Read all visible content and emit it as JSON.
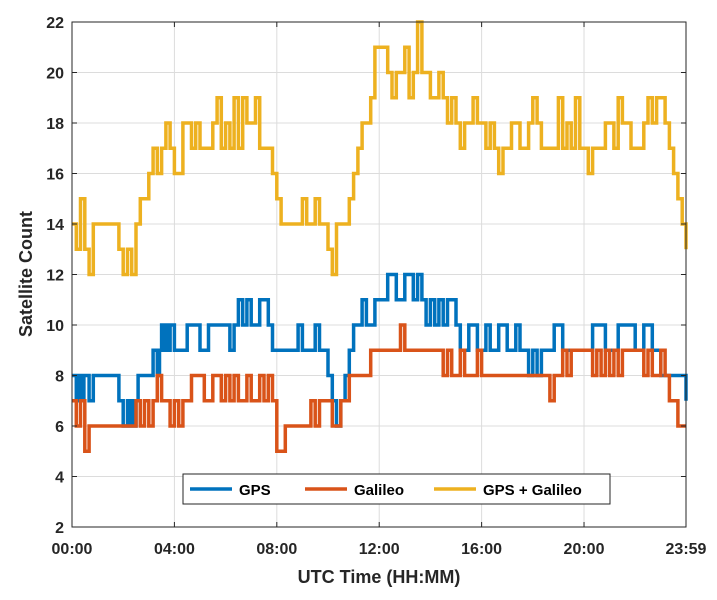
{
  "chart_data": {
    "type": "line",
    "title": "",
    "xlabel": "UTC Time (HH:MM)",
    "ylabel": "Satellite Count",
    "xlim": [
      0,
      1439
    ],
    "ylim": [
      2,
      22
    ],
    "xtick_values": [
      0,
      240,
      480,
      720,
      960,
      1200,
      1439
    ],
    "xtick_labels": [
      "00:00",
      "04:00",
      "08:00",
      "12:00",
      "16:00",
      "20:00",
      "23:59"
    ],
    "ytick_values": [
      2,
      4,
      6,
      8,
      10,
      12,
      14,
      16,
      18,
      20,
      22
    ],
    "ytick_labels": [
      "2",
      "4",
      "6",
      "8",
      "10",
      "12",
      "14",
      "16",
      "18",
      "20",
      "22"
    ],
    "grid": true,
    "legend_position": "bottom-center",
    "series": [
      {
        "name": "GPS",
        "color": "#0072BD",
        "x": [
          0,
          10,
          15,
          22,
          28,
          35,
          40,
          50,
          60,
          70,
          80,
          90,
          100,
          110,
          120,
          130,
          135,
          140,
          145,
          150,
          155,
          160,
          170,
          180,
          190,
          200,
          205,
          210,
          215,
          220,
          225,
          230,
          240,
          250,
          260,
          270,
          280,
          290,
          300,
          310,
          320,
          330,
          340,
          350,
          360,
          370,
          380,
          390,
          400,
          410,
          420,
          430,
          440,
          450,
          460,
          470,
          480,
          490,
          500,
          510,
          520,
          530,
          540,
          550,
          560,
          570,
          580,
          590,
          600,
          610,
          620,
          630,
          640,
          650,
          660,
          670,
          680,
          690,
          700,
          710,
          720,
          730,
          740,
          750,
          760,
          770,
          780,
          790,
          800,
          810,
          820,
          830,
          840,
          850,
          860,
          870,
          880,
          890,
          900,
          910,
          920,
          930,
          940,
          950,
          960,
          970,
          980,
          990,
          1000,
          1010,
          1020,
          1030,
          1040,
          1050,
          1060,
          1070,
          1080,
          1090,
          1100,
          1110,
          1120,
          1130,
          1140,
          1150,
          1160,
          1170,
          1180,
          1190,
          1200,
          1210,
          1220,
          1230,
          1240,
          1250,
          1260,
          1270,
          1280,
          1290,
          1300,
          1310,
          1320,
          1330,
          1340,
          1350,
          1360,
          1370,
          1380,
          1390,
          1400,
          1410,
          1420,
          1430,
          1439
        ],
        "values": [
          8,
          7,
          8,
          7,
          8,
          8,
          7,
          8,
          8,
          8,
          8,
          8,
          8,
          7,
          6,
          7,
          6,
          7,
          6,
          7,
          8,
          8,
          8,
          8,
          9,
          8,
          9,
          10,
          9,
          10,
          9,
          10,
          9,
          9,
          9,
          10,
          10,
          10,
          9,
          9,
          10,
          10,
          10,
          10,
          10,
          9,
          10,
          11,
          10,
          11,
          10,
          10,
          11,
          11,
          10,
          9,
          9,
          9,
          9,
          9,
          9,
          10,
          9,
          9,
          9,
          10,
          9,
          9,
          8,
          7,
          6,
          7,
          8,
          9,
          10,
          10,
          11,
          10,
          10,
          11,
          11,
          11,
          12,
          12,
          11,
          11,
          12,
          12,
          11,
          12,
          11,
          10,
          11,
          10,
          11,
          10,
          11,
          11,
          10,
          9,
          9,
          10,
          10,
          9,
          9,
          10,
          9,
          9,
          10,
          10,
          9,
          9,
          10,
          9,
          9,
          8,
          9,
          8,
          9,
          9,
          9,
          10,
          10,
          9,
          9,
          9,
          9,
          9,
          9,
          9,
          10,
          10,
          10,
          9,
          9,
          9,
          10,
          10,
          10,
          10,
          9,
          9,
          10,
          10,
          9,
          9,
          8,
          8,
          8,
          8,
          8,
          8,
          7
        ]
      },
      {
        "name": "Galileo",
        "color": "#D95319",
        "x": [
          0,
          10,
          20,
          30,
          40,
          50,
          60,
          70,
          80,
          90,
          100,
          110,
          120,
          130,
          140,
          150,
          160,
          170,
          180,
          190,
          200,
          210,
          220,
          230,
          240,
          250,
          260,
          270,
          280,
          290,
          300,
          310,
          320,
          330,
          340,
          350,
          360,
          370,
          380,
          390,
          400,
          410,
          420,
          430,
          440,
          450,
          460,
          470,
          480,
          490,
          500,
          510,
          520,
          530,
          540,
          550,
          560,
          570,
          580,
          590,
          600,
          610,
          620,
          630,
          640,
          650,
          660,
          670,
          680,
          690,
          700,
          710,
          720,
          730,
          740,
          750,
          760,
          770,
          780,
          790,
          800,
          810,
          820,
          830,
          840,
          850,
          860,
          870,
          880,
          890,
          900,
          910,
          920,
          930,
          940,
          950,
          960,
          970,
          980,
          990,
          1000,
          1010,
          1020,
          1030,
          1040,
          1050,
          1060,
          1070,
          1080,
          1090,
          1100,
          1110,
          1120,
          1130,
          1140,
          1150,
          1160,
          1170,
          1180,
          1190,
          1200,
          1210,
          1220,
          1230,
          1240,
          1250,
          1260,
          1270,
          1280,
          1290,
          1300,
          1310,
          1320,
          1330,
          1340,
          1350,
          1360,
          1370,
          1380,
          1390,
          1400,
          1410,
          1420,
          1430,
          1439
        ],
        "values": [
          7,
          6,
          7,
          5,
          6,
          6,
          6,
          6,
          6,
          6,
          6,
          6,
          6,
          6,
          6,
          7,
          6,
          7,
          6,
          7,
          8,
          7,
          7,
          6,
          7,
          6,
          7,
          7,
          8,
          8,
          8,
          7,
          7,
          8,
          8,
          7,
          8,
          7,
          8,
          7,
          7,
          8,
          7,
          7,
          8,
          7,
          8,
          7,
          5,
          5,
          6,
          6,
          6,
          6,
          6,
          6,
          7,
          6,
          7,
          7,
          7,
          6,
          6,
          7,
          7,
          8,
          8,
          8,
          8,
          8,
          9,
          9,
          9,
          9,
          9,
          9,
          9,
          10,
          9,
          9,
          9,
          9,
          9,
          9,
          9,
          9,
          9,
          8,
          9,
          8,
          8,
          9,
          8,
          8,
          8,
          9,
          8,
          8,
          8,
          8,
          8,
          8,
          8,
          8,
          8,
          8,
          8,
          8,
          8,
          8,
          8,
          8,
          7,
          8,
          8,
          9,
          8,
          9,
          9,
          9,
          9,
          9,
          8,
          9,
          8,
          9,
          8,
          9,
          8,
          9,
          9,
          9,
          9,
          9,
          8,
          9,
          8,
          8,
          9,
          8,
          7,
          7,
          6,
          6,
          6
        ]
      },
      {
        "name": "GPS + Galileo",
        "color": "#EDB120",
        "x": [
          0,
          10,
          20,
          30,
          40,
          50,
          60,
          70,
          80,
          90,
          100,
          110,
          120,
          130,
          140,
          150,
          160,
          170,
          180,
          190,
          200,
          210,
          220,
          230,
          240,
          250,
          260,
          270,
          280,
          290,
          300,
          310,
          320,
          330,
          340,
          350,
          360,
          370,
          380,
          390,
          400,
          410,
          420,
          430,
          440,
          450,
          460,
          470,
          480,
          490,
          500,
          510,
          520,
          530,
          540,
          550,
          560,
          570,
          580,
          590,
          600,
          610,
          620,
          630,
          640,
          650,
          660,
          670,
          680,
          690,
          700,
          710,
          720,
          730,
          740,
          750,
          760,
          770,
          780,
          790,
          800,
          810,
          820,
          830,
          840,
          850,
          860,
          870,
          880,
          890,
          900,
          910,
          920,
          930,
          940,
          950,
          960,
          970,
          980,
          990,
          1000,
          1010,
          1020,
          1030,
          1040,
          1050,
          1060,
          1070,
          1080,
          1090,
          1100,
          1110,
          1120,
          1130,
          1140,
          1150,
          1160,
          1170,
          1180,
          1190,
          1200,
          1210,
          1220,
          1230,
          1240,
          1250,
          1260,
          1270,
          1280,
          1290,
          1300,
          1310,
          1320,
          1330,
          1340,
          1350,
          1360,
          1370,
          1380,
          1390,
          1400,
          1410,
          1420,
          1430,
          1439
        ],
        "values": [
          14,
          13,
          15,
          13,
          12,
          14,
          14,
          14,
          14,
          14,
          14,
          13,
          12,
          13,
          12,
          14,
          15,
          15,
          16,
          17,
          16,
          17,
          18,
          17,
          16,
          16,
          18,
          18,
          17,
          18,
          17,
          17,
          17,
          18,
          19,
          17,
          18,
          17,
          19,
          17,
          19,
          18,
          18,
          19,
          17,
          17,
          17,
          16,
          15,
          14,
          14,
          14,
          14,
          14,
          15,
          14,
          14,
          15,
          14,
          14,
          13,
          12,
          14,
          14,
          14,
          15,
          16,
          17,
          18,
          18,
          19,
          21,
          21,
          21,
          20,
          19,
          20,
          20,
          21,
          19,
          20,
          22,
          20,
          20,
          19,
          19,
          20,
          19,
          18,
          19,
          18,
          17,
          18,
          18,
          19,
          18,
          18,
          17,
          18,
          17,
          16,
          17,
          17,
          18,
          18,
          17,
          17,
          18,
          19,
          18,
          17,
          17,
          17,
          17,
          19,
          17,
          18,
          17,
          19,
          17,
          17,
          16,
          17,
          17,
          17,
          18,
          18,
          17,
          19,
          18,
          18,
          17,
          17,
          17,
          18,
          19,
          18,
          19,
          19,
          18,
          17,
          16,
          15,
          14,
          13
        ]
      }
    ]
  }
}
